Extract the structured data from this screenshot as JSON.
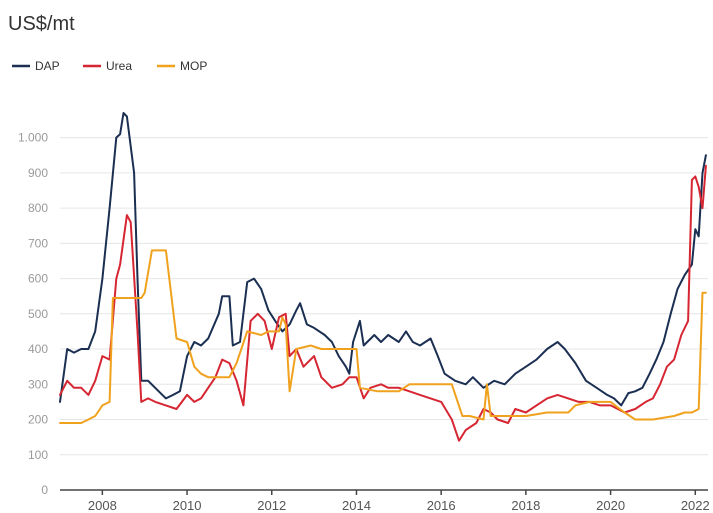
{
  "chart_data": {
    "type": "line",
    "title": "US$/mt",
    "xlabel": "",
    "ylabel": "",
    "ylim": [
      0,
      1050
    ],
    "xlim": [
      2007.0,
      2022.3
    ],
    "yticks": [
      0,
      100,
      200,
      300,
      400,
      500,
      600,
      700,
      800,
      900,
      1000
    ],
    "ytick_labels": [
      "0",
      "100",
      "200",
      "300",
      "400",
      "500",
      "600",
      "700",
      "800",
      "900",
      "1.000"
    ],
    "xticks": [
      2008,
      2010,
      2012,
      2014,
      2016,
      2018,
      2020,
      2022
    ],
    "xtick_labels": [
      "2008",
      "2010",
      "2012",
      "2014",
      "2016",
      "2018",
      "2020",
      "2022"
    ],
    "grid": true,
    "legend_position": "top-left",
    "series": [
      {
        "name": "DAP",
        "color": "#1b2f52",
        "points": [
          [
            2007.0,
            250
          ],
          [
            2007.17,
            400
          ],
          [
            2007.33,
            390
          ],
          [
            2007.5,
            400
          ],
          [
            2007.67,
            400
          ],
          [
            2007.83,
            450
          ],
          [
            2008.0,
            600
          ],
          [
            2008.17,
            800
          ],
          [
            2008.33,
            1000
          ],
          [
            2008.42,
            1010
          ],
          [
            2008.5,
            1070
          ],
          [
            2008.58,
            1060
          ],
          [
            2008.75,
            900
          ],
          [
            2008.83,
            600
          ],
          [
            2008.92,
            310
          ],
          [
            2009.08,
            310
          ],
          [
            2009.33,
            280
          ],
          [
            2009.5,
            260
          ],
          [
            2009.67,
            270
          ],
          [
            2009.83,
            280
          ],
          [
            2010.0,
            380
          ],
          [
            2010.17,
            420
          ],
          [
            2010.33,
            410
          ],
          [
            2010.5,
            430
          ],
          [
            2010.75,
            500
          ],
          [
            2010.83,
            550
          ],
          [
            2011.0,
            550
          ],
          [
            2011.08,
            410
          ],
          [
            2011.25,
            420
          ],
          [
            2011.42,
            590
          ],
          [
            2011.58,
            600
          ],
          [
            2011.75,
            570
          ],
          [
            2011.92,
            510
          ],
          [
            2012.08,
            480
          ],
          [
            2012.25,
            450
          ],
          [
            2012.42,
            470
          ],
          [
            2012.58,
            510
          ],
          [
            2012.67,
            530
          ],
          [
            2012.83,
            470
          ],
          [
            2013.0,
            460
          ],
          [
            2013.25,
            440
          ],
          [
            2013.42,
            420
          ],
          [
            2013.58,
            380
          ],
          [
            2013.75,
            350
          ],
          [
            2013.83,
            330
          ],
          [
            2013.92,
            420
          ],
          [
            2014.08,
            480
          ],
          [
            2014.17,
            410
          ],
          [
            2014.42,
            440
          ],
          [
            2014.58,
            420
          ],
          [
            2014.75,
            440
          ],
          [
            2015.0,
            420
          ],
          [
            2015.17,
            450
          ],
          [
            2015.33,
            420
          ],
          [
            2015.5,
            410
          ],
          [
            2015.75,
            430
          ],
          [
            2015.92,
            380
          ],
          [
            2016.08,
            330
          ],
          [
            2016.33,
            310
          ],
          [
            2016.58,
            300
          ],
          [
            2016.75,
            320
          ],
          [
            2017.0,
            290
          ],
          [
            2017.25,
            310
          ],
          [
            2017.5,
            300
          ],
          [
            2017.75,
            330
          ],
          [
            2018.0,
            350
          ],
          [
            2018.25,
            370
          ],
          [
            2018.5,
            400
          ],
          [
            2018.75,
            420
          ],
          [
            2018.92,
            400
          ],
          [
            2019.17,
            360
          ],
          [
            2019.42,
            310
          ],
          [
            2019.67,
            290
          ],
          [
            2019.92,
            270
          ],
          [
            2020.08,
            260
          ],
          [
            2020.25,
            240
          ],
          [
            2020.42,
            275
          ],
          [
            2020.58,
            280
          ],
          [
            2020.75,
            290
          ],
          [
            2020.92,
            330
          ],
          [
            2021.08,
            370
          ],
          [
            2021.25,
            420
          ],
          [
            2021.42,
            500
          ],
          [
            2021.58,
            570
          ],
          [
            2021.75,
            610
          ],
          [
            2021.92,
            640
          ],
          [
            2022.0,
            740
          ],
          [
            2022.08,
            720
          ],
          [
            2022.17,
            900
          ],
          [
            2022.25,
            950
          ]
        ]
      },
      {
        "name": "Urea",
        "color": "#d62632",
        "points": [
          [
            2007.0,
            270
          ],
          [
            2007.17,
            310
          ],
          [
            2007.33,
            290
          ],
          [
            2007.5,
            290
          ],
          [
            2007.67,
            270
          ],
          [
            2007.83,
            310
          ],
          [
            2008.0,
            380
          ],
          [
            2008.17,
            370
          ],
          [
            2008.33,
            600
          ],
          [
            2008.42,
            640
          ],
          [
            2008.58,
            780
          ],
          [
            2008.67,
            760
          ],
          [
            2008.83,
            450
          ],
          [
            2008.92,
            250
          ],
          [
            2009.08,
            260
          ],
          [
            2009.25,
            250
          ],
          [
            2009.5,
            240
          ],
          [
            2009.75,
            230
          ],
          [
            2010.0,
            270
          ],
          [
            2010.17,
            250
          ],
          [
            2010.33,
            260
          ],
          [
            2010.5,
            290
          ],
          [
            2010.67,
            320
          ],
          [
            2010.83,
            370
          ],
          [
            2011.0,
            360
          ],
          [
            2011.17,
            310
          ],
          [
            2011.33,
            240
          ],
          [
            2011.5,
            480
          ],
          [
            2011.67,
            500
          ],
          [
            2011.83,
            480
          ],
          [
            2012.0,
            400
          ],
          [
            2012.17,
            490
          ],
          [
            2012.33,
            500
          ],
          [
            2012.42,
            380
          ],
          [
            2012.58,
            400
          ],
          [
            2012.75,
            350
          ],
          [
            2013.0,
            380
          ],
          [
            2013.17,
            320
          ],
          [
            2013.42,
            290
          ],
          [
            2013.67,
            300
          ],
          [
            2013.83,
            320
          ],
          [
            2014.0,
            320
          ],
          [
            2014.17,
            260
          ],
          [
            2014.33,
            290
          ],
          [
            2014.58,
            300
          ],
          [
            2014.75,
            290
          ],
          [
            2015.0,
            290
          ],
          [
            2015.25,
            280
          ],
          [
            2015.5,
            270
          ],
          [
            2015.75,
            260
          ],
          [
            2016.0,
            250
          ],
          [
            2016.25,
            200
          ],
          [
            2016.42,
            140
          ],
          [
            2016.58,
            170
          ],
          [
            2016.83,
            190
          ],
          [
            2017.0,
            230
          ],
          [
            2017.17,
            220
          ],
          [
            2017.33,
            200
          ],
          [
            2017.58,
            190
          ],
          [
            2017.75,
            230
          ],
          [
            2018.0,
            220
          ],
          [
            2018.25,
            240
          ],
          [
            2018.5,
            260
          ],
          [
            2018.75,
            270
          ],
          [
            2019.0,
            260
          ],
          [
            2019.25,
            250
          ],
          [
            2019.5,
            250
          ],
          [
            2019.75,
            240
          ],
          [
            2020.0,
            240
          ],
          [
            2020.17,
            230
          ],
          [
            2020.33,
            220
          ],
          [
            2020.58,
            230
          ],
          [
            2020.83,
            250
          ],
          [
            2021.0,
            260
          ],
          [
            2021.17,
            300
          ],
          [
            2021.33,
            350
          ],
          [
            2021.5,
            370
          ],
          [
            2021.67,
            440
          ],
          [
            2021.83,
            480
          ],
          [
            2021.92,
            880
          ],
          [
            2022.0,
            890
          ],
          [
            2022.08,
            860
          ],
          [
            2022.17,
            800
          ],
          [
            2022.25,
            920
          ]
        ]
      },
      {
        "name": "MOP",
        "color": "#f0a21e",
        "points": [
          [
            2007.0,
            190
          ],
          [
            2007.5,
            190
          ],
          [
            2007.67,
            200
          ],
          [
            2007.83,
            210
          ],
          [
            2008.0,
            240
          ],
          [
            2008.17,
            250
          ],
          [
            2008.25,
            545
          ],
          [
            2008.92,
            545
          ],
          [
            2009.0,
            560
          ],
          [
            2009.17,
            680
          ],
          [
            2009.5,
            680
          ],
          [
            2009.75,
            430
          ],
          [
            2010.0,
            420
          ],
          [
            2010.17,
            350
          ],
          [
            2010.33,
            330
          ],
          [
            2010.5,
            320
          ],
          [
            2011.0,
            320
          ],
          [
            2011.17,
            360
          ],
          [
            2011.42,
            450
          ],
          [
            2011.75,
            440
          ],
          [
            2011.92,
            450
          ],
          [
            2012.17,
            450
          ],
          [
            2012.25,
            490
          ],
          [
            2012.33,
            470
          ],
          [
            2012.42,
            280
          ],
          [
            2012.58,
            400
          ],
          [
            2012.92,
            410
          ],
          [
            2013.17,
            400
          ],
          [
            2013.5,
            400
          ],
          [
            2013.92,
            400
          ],
          [
            2014.0,
            400
          ],
          [
            2014.08,
            290
          ],
          [
            2014.5,
            280
          ],
          [
            2015.0,
            280
          ],
          [
            2015.25,
            300
          ],
          [
            2016.0,
            300
          ],
          [
            2016.25,
            300
          ],
          [
            2016.5,
            210
          ],
          [
            2016.67,
            210
          ],
          [
            2017.0,
            200
          ],
          [
            2017.08,
            300
          ],
          [
            2017.17,
            210
          ],
          [
            2017.5,
            210
          ],
          [
            2018.0,
            210
          ],
          [
            2018.5,
            220
          ],
          [
            2019.0,
            220
          ],
          [
            2019.17,
            240
          ],
          [
            2019.5,
            250
          ],
          [
            2020.0,
            250
          ],
          [
            2020.33,
            220
          ],
          [
            2020.58,
            200
          ],
          [
            2021.0,
            200
          ],
          [
            2021.5,
            210
          ],
          [
            2021.75,
            220
          ],
          [
            2021.92,
            220
          ],
          [
            2022.08,
            230
          ],
          [
            2022.17,
            560
          ],
          [
            2022.25,
            560
          ]
        ]
      }
    ]
  }
}
